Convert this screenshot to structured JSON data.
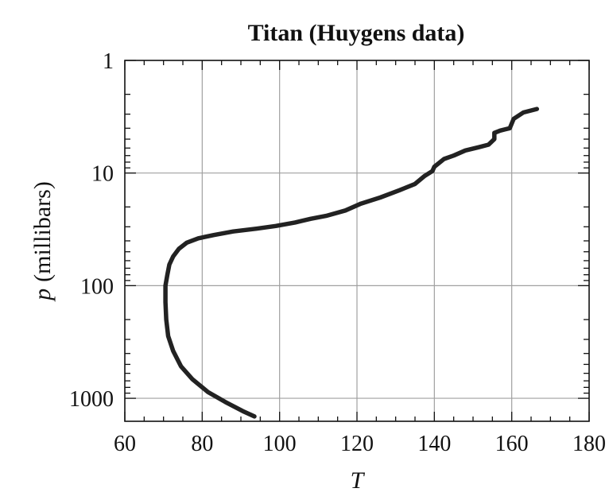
{
  "chart_data": {
    "type": "line",
    "title": "Titan (Huygens data)",
    "xlabel": "T",
    "ylabel_var": "p",
    "ylabel_unit": "(millibars)",
    "xlim": [
      60,
      180
    ],
    "ylim": [
      1,
      1600
    ],
    "y_scale": "log",
    "y_inverted": true,
    "grid": true,
    "x_ticks": [
      60,
      80,
      100,
      120,
      140,
      160,
      180
    ],
    "x_tick_labels": [
      "60",
      "80",
      "100",
      "120",
      "140",
      "160",
      "180"
    ],
    "y_ticks": [
      1,
      10,
      100,
      1000
    ],
    "y_tick_labels": [
      "1",
      "10",
      "100",
      "1000"
    ],
    "series": [
      {
        "x": [
          166.5,
          163,
          160.5,
          159.5,
          157,
          155.5,
          155.5,
          154,
          151.5,
          148,
          145,
          142.5,
          140,
          139.5,
          137.5,
          135,
          131,
          126,
          121,
          117,
          112,
          108,
          104,
          99,
          94,
          88,
          83,
          79,
          76,
          74,
          72.5,
          71.5,
          71,
          70.5,
          70.5,
          70.7,
          71.2,
          72.5,
          74.5,
          77.5,
          81.5,
          86,
          90.5,
          93.5
        ],
        "y": [
          2.7,
          2.9,
          3.3,
          4.0,
          4.2,
          4.4,
          5.0,
          5.6,
          5.9,
          6.3,
          7.0,
          7.5,
          8.8,
          9.6,
          10.6,
          12.5,
          14.2,
          16.5,
          18.7,
          21.5,
          24.0,
          25.5,
          27.5,
          29.5,
          31.2,
          33.0,
          35.5,
          38.0,
          41.5,
          47,
          55,
          65,
          80,
          100,
          140,
          200,
          280,
          380,
          520,
          680,
          880,
          1080,
          1300,
          1450
        ]
      }
    ]
  }
}
